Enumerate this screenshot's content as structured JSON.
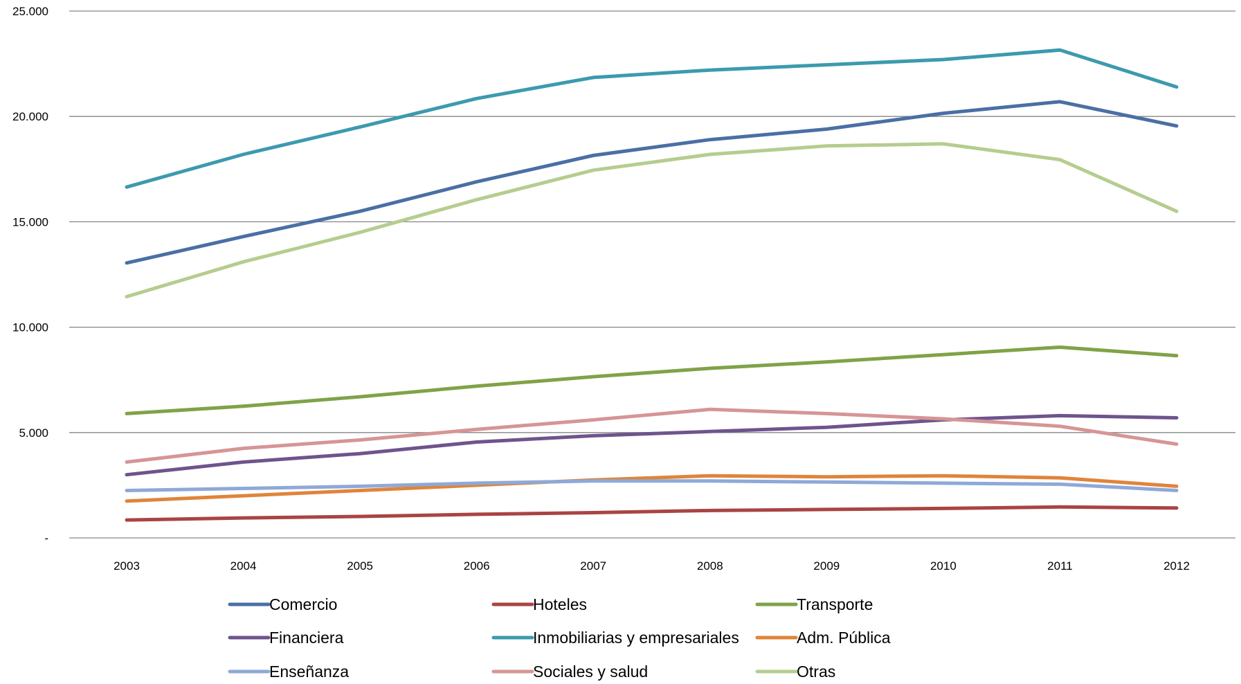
{
  "chart_data": {
    "type": "line",
    "title": "",
    "xlabel": "",
    "ylabel": "",
    "x": [
      "2003",
      "2004",
      "2005",
      "2006",
      "2007",
      "2008",
      "2009",
      "2010",
      "2011",
      "2012"
    ],
    "ylim": [
      0,
      25000
    ],
    "y_ticks": [
      0,
      5000,
      10000,
      15000,
      20000,
      25000
    ],
    "y_tick_labels": [
      "-",
      "5.000",
      "10.000",
      "15.000",
      "20.000",
      "25.000"
    ],
    "grid": "horizontal",
    "legend_position": "bottom",
    "series": [
      {
        "name": "Comercio",
        "color": "#4A6FA5",
        "values": [
          13050,
          14300,
          15500,
          16900,
          18150,
          18900,
          19400,
          20150,
          20700,
          19550
        ]
      },
      {
        "name": "Hoteles",
        "color": "#A94442",
        "values": [
          850,
          950,
          1020,
          1120,
          1200,
          1300,
          1350,
          1400,
          1470,
          1420
        ]
      },
      {
        "name": "Transporte",
        "color": "#7FA348",
        "values": [
          5900,
          6250,
          6700,
          7200,
          7650,
          8050,
          8350,
          8700,
          9050,
          8650
        ]
      },
      {
        "name": "Financiera",
        "color": "#6E548D",
        "values": [
          3000,
          3600,
          4000,
          4550,
          4850,
          5050,
          5250,
          5600,
          5800,
          5700
        ]
      },
      {
        "name": "Inmobiliarias y empresariales",
        "color": "#3C9AAE",
        "values": [
          16650,
          18200,
          19500,
          20850,
          21850,
          22200,
          22450,
          22700,
          23150,
          21400
        ]
      },
      {
        "name": "Adm. Pública",
        "color": "#E0843A",
        "values": [
          1750,
          2000,
          2250,
          2500,
          2750,
          2950,
          2900,
          2950,
          2850,
          2450
        ]
      },
      {
        "name": "Enseñanza",
        "color": "#8EA9D8",
        "values": [
          2250,
          2350,
          2450,
          2600,
          2700,
          2700,
          2650,
          2600,
          2550,
          2250
        ]
      },
      {
        "name": "Sociales y salud",
        "color": "#D69595",
        "values": [
          3600,
          4250,
          4650,
          5150,
          5600,
          6100,
          5900,
          5650,
          5300,
          4450
        ]
      },
      {
        "name": "Otras",
        "color": "#B5CD8F",
        "values": [
          11450,
          13100,
          14500,
          16050,
          17450,
          18200,
          18600,
          18700,
          17950,
          15500
        ]
      }
    ]
  }
}
